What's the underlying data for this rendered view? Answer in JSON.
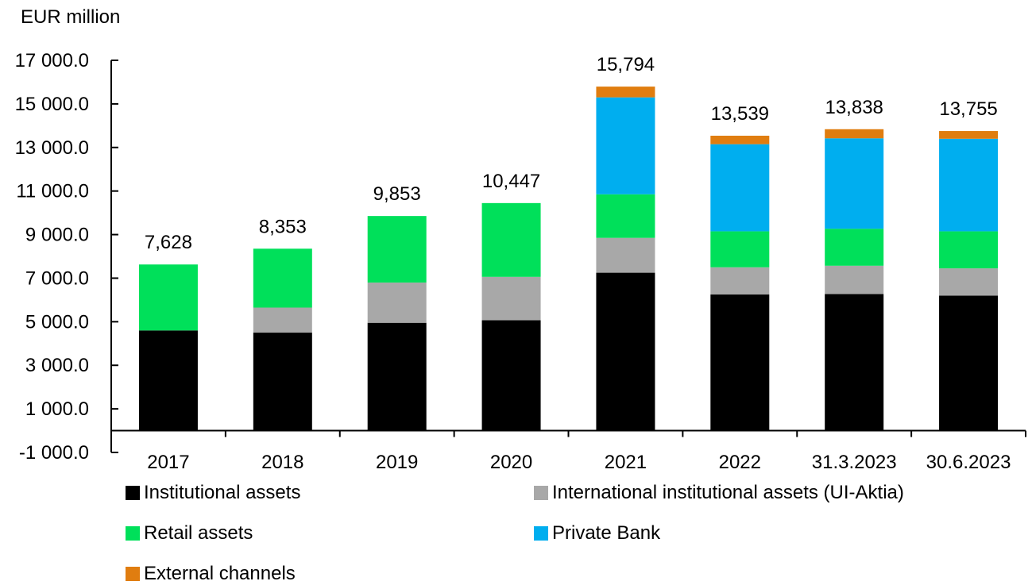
{
  "chart_data": {
    "type": "bar",
    "stacked": true,
    "unit_label": "EUR million",
    "categories": [
      "2017",
      "2018",
      "2019",
      "2020",
      "2021",
      "2022",
      "31.3.2023",
      "30.6.2023"
    ],
    "totals": [
      "7,628",
      "8,353",
      "9,853",
      "10,447",
      "15,794",
      "13,539",
      "13,838",
      "13,755"
    ],
    "series": [
      {
        "name": "Institutional assets",
        "color": "#000000",
        "values": [
          4600,
          4500,
          4950,
          5070,
          7250,
          6250,
          6270,
          6200
        ]
      },
      {
        "name": "International institutional assets (UI-Aktia)",
        "color": "#a8a8a8",
        "values": [
          0,
          1150,
          1850,
          1990,
          1600,
          1250,
          1300,
          1250
        ]
      },
      {
        "name": "Retail assets",
        "color": "#00e05a",
        "values": [
          3028,
          2703,
          3053,
          3387,
          2000,
          1650,
          1700,
          1700
        ]
      },
      {
        "name": "Private Bank",
        "color": "#00aeef",
        "values": [
          0,
          0,
          0,
          0,
          4450,
          4000,
          4150,
          4250
        ]
      },
      {
        "name": "External channels",
        "color": "#e07d10",
        "values": [
          0,
          0,
          0,
          0,
          494,
          389,
          418,
          355
        ]
      }
    ],
    "y_ticks": [
      -1000,
      1000,
      3000,
      5000,
      7000,
      9000,
      11000,
      13000,
      15000,
      17000
    ],
    "y_tick_labels": [
      "-1 000.0",
      "1 000.0",
      "3 000.0",
      "5 000.0",
      "7 000.0",
      "9 000.0",
      "11 000.0",
      "13 000.0",
      "15 000.0",
      "17 000.0"
    ],
    "ylim": [
      -1000,
      17000
    ],
    "grid": false,
    "legend_position": "bottom"
  }
}
